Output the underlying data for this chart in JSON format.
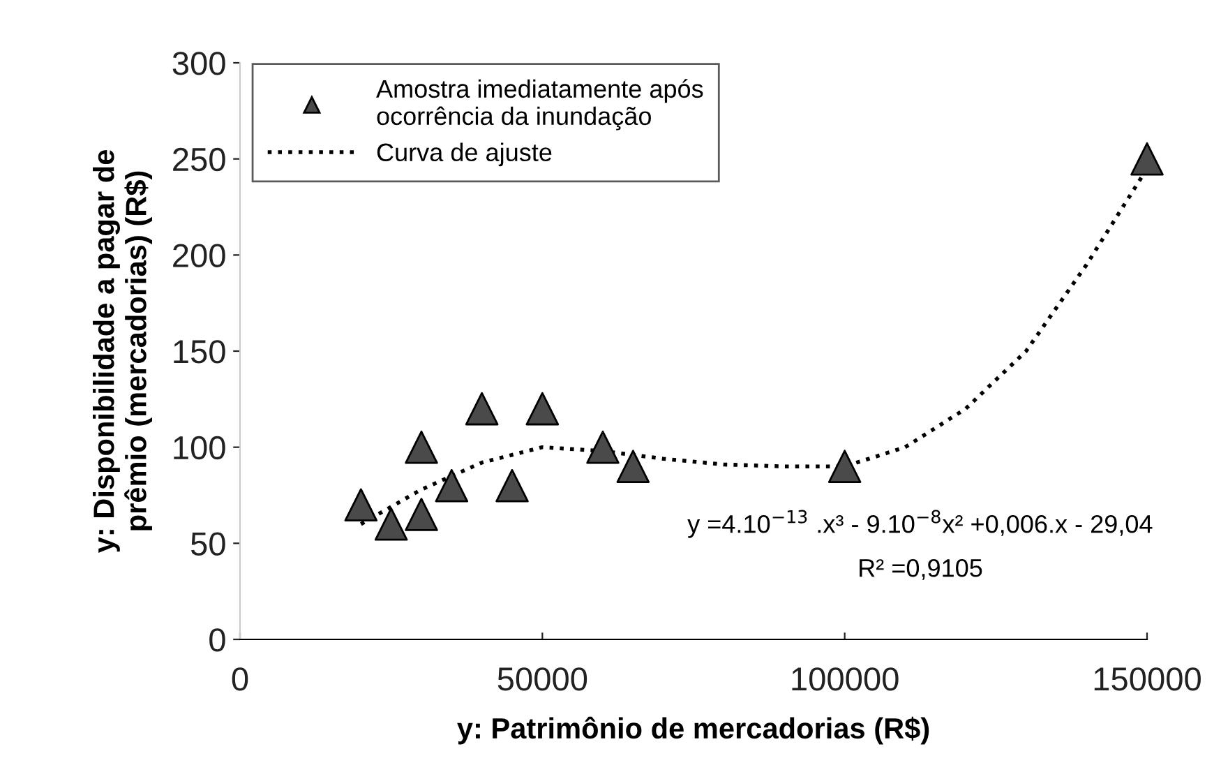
{
  "chart_data": {
    "type": "scatter",
    "xlabel": "y: Patrimônio de mercadorias (R$)",
    "ylabel": "y: Disponibilidade a pagar de\nprêmio (mercadorias) (R$)",
    "xlim": [
      0,
      150000
    ],
    "xticks": [
      0,
      50000,
      100000,
      150000
    ],
    "ylim": [
      0,
      300
    ],
    "yticks": [
      0,
      50,
      100,
      150,
      200,
      250,
      300
    ],
    "grid": false,
    "legend": "top left",
    "series": [
      {
        "name": "Amostra imediatamente após\nocorrência da inundação",
        "marker": "triangle",
        "color": "#4a4a4a",
        "x": [
          20000,
          25000,
          30000,
          30000,
          35000,
          40000,
          45000,
          50000,
          60000,
          65000,
          100000,
          150000
        ],
        "values": [
          70,
          60,
          65,
          100,
          80,
          120,
          80,
          120,
          100,
          90,
          90,
          250
        ]
      },
      {
        "name": "Curva de ajuste",
        "type": "line",
        "marker": "none",
        "line_style": "dotted",
        "color": "#000000",
        "x": [
          20000,
          30000,
          40000,
          50000,
          60000,
          70000,
          80000,
          90000,
          100000,
          110000,
          120000,
          130000,
          140000,
          150000
        ],
        "values": [
          60,
          78,
          92,
          100,
          98,
          94,
          91,
          90,
          90,
          100,
          120,
          150,
          195,
          245
        ]
      }
    ],
    "annotations": [
      "y =4.10$^{−13}$ .x³ - 9.10$^{−8}$x² +0,006.x - 29,04",
      "R² =0,9105"
    ]
  }
}
